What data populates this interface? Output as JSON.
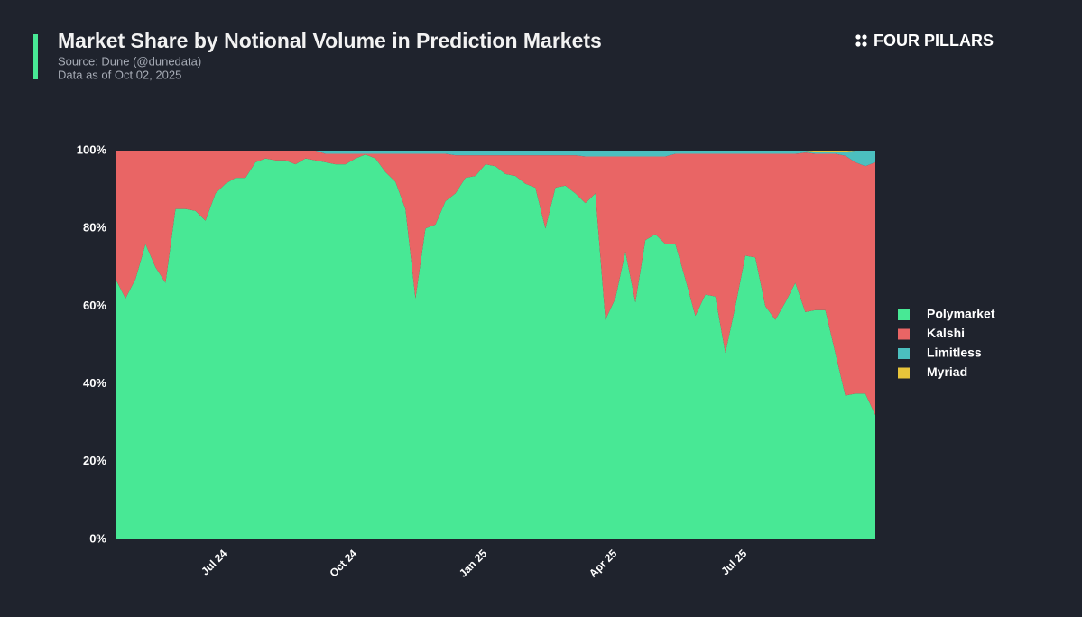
{
  "chart_data": {
    "type": "stacked_area",
    "title": "Market Share by Notional Volume in Prediction Markets",
    "subtitle": "Source: Dune (@dunedata)",
    "note": "Data as of Oct 02, 2025",
    "brand": "FOUR PILLARS",
    "categories": [
      null,
      null,
      null,
      null,
      null,
      null,
      null,
      null,
      null,
      null,
      null,
      "Jul 24",
      null,
      null,
      null,
      null,
      null,
      null,
      null,
      null,
      null,
      null,
      null,
      null,
      "Oct 24",
      null,
      null,
      null,
      null,
      null,
      null,
      null,
      null,
      null,
      null,
      null,
      null,
      "Jan 25",
      null,
      null,
      null,
      null,
      null,
      null,
      null,
      null,
      null,
      null,
      null,
      null,
      "Apr 25",
      null,
      null,
      null,
      null,
      null,
      null,
      null,
      null,
      null,
      null,
      null,
      null,
      "Jul 25",
      null,
      null,
      null,
      null,
      null,
      null,
      null,
      null,
      null,
      null,
      null,
      null,
      null
    ],
    "series": [
      {
        "name": "Polymarket",
        "color": "#48e895",
        "values": [
          67,
          62,
          67,
          76,
          70,
          66,
          85,
          85,
          84.5,
          82,
          89,
          91.5,
          93,
          93,
          97,
          98,
          97.5,
          97.5,
          96.5,
          98,
          97.5,
          97,
          96.5,
          96.5,
          98,
          99,
          98,
          94.5,
          92,
          85,
          62,
          80,
          81,
          87,
          89,
          93,
          93.5,
          96.5,
          96,
          94,
          93.5,
          91.5,
          90.5,
          80,
          90.5,
          91,
          89,
          86.5,
          89,
          56.5,
          62,
          74,
          61,
          77,
          78.5,
          76,
          76,
          67,
          57.5,
          63,
          62.5,
          48,
          60,
          73,
          72.5,
          60,
          56.5,
          61,
          66,
          58.5,
          59,
          59,
          48,
          37,
          37.5,
          37.5,
          32
        ]
      },
      {
        "name": "Kalshi",
        "color": "#e96565",
        "values": [
          33,
          38,
          33,
          24,
          30,
          34,
          15,
          15,
          15.5,
          18,
          11,
          8.5,
          7,
          7,
          3,
          2,
          2.5,
          2.5,
          3.5,
          2,
          2.5,
          2.2,
          2.7,
          2.7,
          1.2,
          0.2,
          1.2,
          4.7,
          7.2,
          14.2,
          37.2,
          19.2,
          18.2,
          12.2,
          9.8,
          5.8,
          5.3,
          2.3,
          2.8,
          4.8,
          5.3,
          7.3,
          8.3,
          18.8,
          8.3,
          7.8,
          9.8,
          12,
          9.5,
          42,
          36.5,
          24.5,
          37.5,
          21.5,
          20,
          22.5,
          23.2,
          32.2,
          41.7,
          36.2,
          36.7,
          51.2,
          39.2,
          26.2,
          26.7,
          39.2,
          42.7,
          38.2,
          33.2,
          41,
          40.2,
          40.2,
          51.2,
          61.7,
          59.5,
          58.5,
          65
        ]
      },
      {
        "name": "Limitless",
        "color": "#4bbfbf",
        "values": [
          0,
          0,
          0,
          0,
          0,
          0,
          0,
          0,
          0,
          0,
          0,
          0,
          0,
          0,
          0,
          0,
          0,
          0,
          0,
          0,
          0,
          0.8,
          0.8,
          0.8,
          0.8,
          0.8,
          0.8,
          0.8,
          0.8,
          0.8,
          0.8,
          0.8,
          0.8,
          0.8,
          1.2,
          1.2,
          1.2,
          1.2,
          1.2,
          1.2,
          1.2,
          1.2,
          1.2,
          1.2,
          1.2,
          1.2,
          1.2,
          1.5,
          1.5,
          1.5,
          1.5,
          1.5,
          1.5,
          1.5,
          1.5,
          1.5,
          0.8,
          0.8,
          0.8,
          0.8,
          0.8,
          0.8,
          0.8,
          0.8,
          0.8,
          0.8,
          0.8,
          0.8,
          0.8,
          0.5,
          0.5,
          0.5,
          0.5,
          1,
          3,
          4,
          3
        ]
      },
      {
        "name": "Myriad",
        "color": "#e8c53a",
        "values": [
          0,
          0,
          0,
          0,
          0,
          0,
          0,
          0,
          0,
          0,
          0,
          0,
          0,
          0,
          0,
          0,
          0,
          0,
          0,
          0,
          0,
          0,
          0,
          0,
          0,
          0,
          0,
          0,
          0,
          0,
          0,
          0,
          0,
          0,
          0,
          0,
          0,
          0,
          0,
          0,
          0,
          0,
          0,
          0,
          0,
          0,
          0,
          0,
          0,
          0,
          0,
          0,
          0,
          0,
          0,
          0,
          0,
          0,
          0,
          0,
          0,
          0,
          0,
          0,
          0,
          0,
          0,
          0,
          0,
          0,
          0.3,
          0.3,
          0.3,
          0.3,
          0,
          0,
          0
        ]
      }
    ],
    "ylim": [
      0,
      100
    ],
    "yticks": [
      {
        "value": 0,
        "label": "0%"
      },
      {
        "value": 20,
        "label": "20%"
      },
      {
        "value": 40,
        "label": "40%"
      },
      {
        "value": 60,
        "label": "60%"
      },
      {
        "value": 80,
        "label": "80%"
      },
      {
        "value": 100,
        "label": "100%"
      }
    ],
    "legend": "right"
  }
}
